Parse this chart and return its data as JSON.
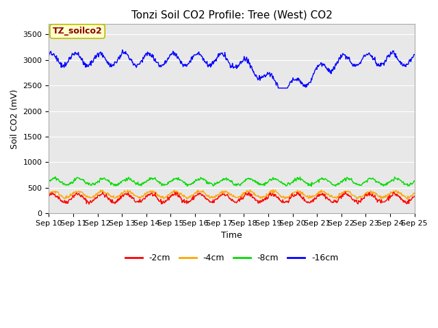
{
  "title": "Tonzi Soil CO2 Profile: Tree (West) CO2",
  "ylabel": "Soil CO2 (mV)",
  "xlabel": "Time",
  "legend_label": "TZ_soilco2",
  "series_labels": [
    "-2cm",
    "-4cm",
    "-8cm",
    "-16cm"
  ],
  "series_colors": [
    "#ff0000",
    "#ffa500",
    "#00dd00",
    "#0000ff"
  ],
  "ylim": [
    0,
    3700
  ],
  "yticks": [
    0,
    500,
    1000,
    1500,
    2000,
    2500,
    3000,
    3500
  ],
  "xticklabels": [
    "Sep 10",
    "Sep 11",
    "Sep 12",
    "Sep 13",
    "Sep 14",
    "Sep 15",
    "Sep 16",
    "Sep 17",
    "Sep 18",
    "Sep 19",
    "Sep 20",
    "Sep 21",
    "Sep 22",
    "Sep 23",
    "Sep 24",
    "Sep 25"
  ],
  "fig_bg_color": "#ffffff",
  "plot_bg_color": "#e8e8e8",
  "title_fontsize": 11,
  "axis_fontsize": 9,
  "tick_fontsize": 8,
  "legend_box_color": "#ffffcc",
  "legend_box_edge": "#bbbb00",
  "legend_text_color": "#880000"
}
